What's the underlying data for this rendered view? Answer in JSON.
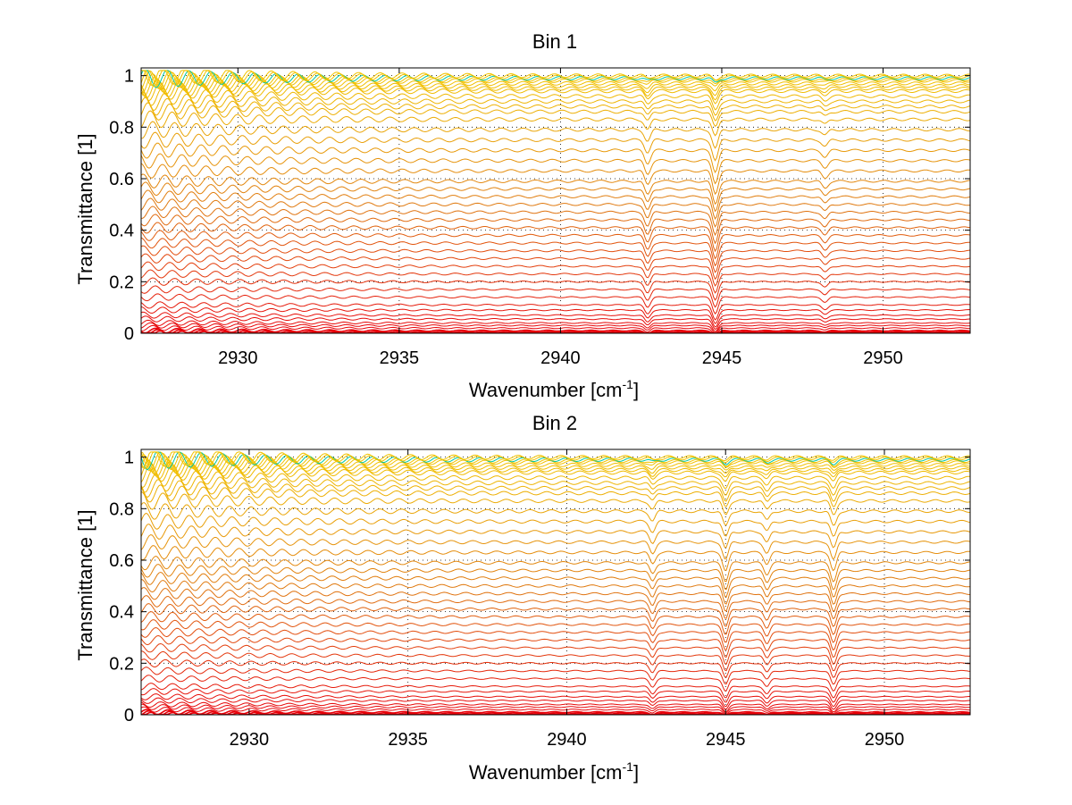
{
  "chart_data": [
    {
      "type": "line",
      "title": "Bin 1",
      "xlabel": "Wavenumber [cm",
      "xlabel_sup": "-1",
      "xlabel_close": "]",
      "ylabel": "Transmittance [1]",
      "xlim": [
        2927.0,
        2952.7
      ],
      "ylim": [
        0,
        1.03
      ],
      "grid": "dotted",
      "xticks": [
        2930,
        2935,
        2940,
        2945,
        2950
      ],
      "xtick_labels": [
        "2930",
        "2935",
        "2940",
        "2945",
        "2950"
      ],
      "yticks": [
        0,
        0.2,
        0.4,
        0.6,
        0.8,
        1
      ],
      "ytick_labels": [
        "0",
        "0.2",
        "0.4",
        "0.6",
        "0.8",
        "1"
      ],
      "absorption_lines": [
        {
          "center": 2942.7,
          "depth": 0.06
        },
        {
          "center": 2944.8,
          "depth": 0.1
        },
        {
          "center": 2948.2,
          "depth": 0.03
        }
      ],
      "series_baselines": [
        0.0,
        0.005,
        0.01,
        0.02,
        0.03,
        0.04,
        0.055,
        0.07,
        0.09,
        0.11,
        0.14,
        0.17,
        0.2,
        0.23,
        0.26,
        0.29,
        0.32,
        0.35,
        0.38,
        0.41,
        0.44,
        0.47,
        0.5,
        0.53,
        0.56,
        0.59,
        0.63,
        0.67,
        0.71,
        0.75,
        0.79,
        0.83,
        0.86,
        0.88,
        0.9,
        0.92,
        0.94,
        0.95,
        0.96,
        0.97,
        0.98,
        0.985,
        0.99,
        0.995,
        1.0
      ]
    },
    {
      "type": "line",
      "title": "Bin 2",
      "xlabel": "Wavenumber [cm",
      "xlabel_sup": "-1",
      "xlabel_close": "]",
      "ylabel": "Transmittance [1]",
      "xlim": [
        2926.6,
        2952.7
      ],
      "ylim": [
        0,
        1.03
      ],
      "grid": "dotted",
      "xticks": [
        2930,
        2935,
        2940,
        2945,
        2950
      ],
      "xtick_labels": [
        "2930",
        "2935",
        "2940",
        "2945",
        "2950"
      ],
      "yticks": [
        0,
        0.2,
        0.4,
        0.6,
        0.8,
        1
      ],
      "ytick_labels": [
        "0",
        "0.2",
        "0.4",
        "0.6",
        "0.8",
        "1"
      ],
      "absorption_lines": [
        {
          "center": 2942.7,
          "depth": 0.05
        },
        {
          "center": 2945.0,
          "depth": 0.08
        },
        {
          "center": 2946.3,
          "depth": 0.05
        },
        {
          "center": 2948.4,
          "depth": 0.08
        }
      ],
      "series_baselines": [
        0.0,
        0.005,
        0.01,
        0.02,
        0.03,
        0.04,
        0.055,
        0.07,
        0.09,
        0.11,
        0.14,
        0.17,
        0.2,
        0.23,
        0.26,
        0.29,
        0.32,
        0.35,
        0.38,
        0.41,
        0.44,
        0.47,
        0.5,
        0.53,
        0.56,
        0.59,
        0.63,
        0.67,
        0.71,
        0.75,
        0.79,
        0.83,
        0.86,
        0.88,
        0.9,
        0.92,
        0.94,
        0.95,
        0.96,
        0.97,
        0.98,
        0.985,
        0.99,
        0.995,
        1.0
      ]
    }
  ],
  "colors": {
    "low": "#e8000a",
    "mid": "#e07a10",
    "high": "#f2c400",
    "top": "#00c8a0"
  }
}
